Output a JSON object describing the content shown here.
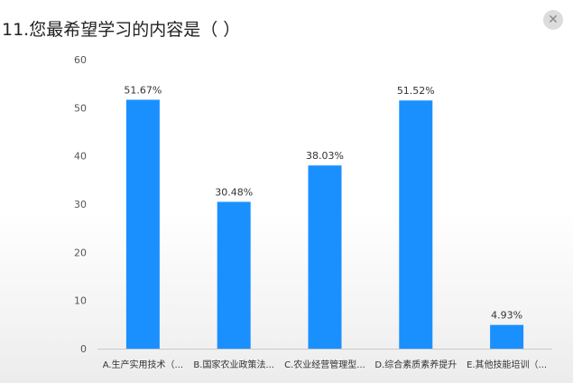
{
  "header": {
    "title": "11.您最希望学习的内容是（    ）",
    "close_icon": "close-icon"
  },
  "chart_data": {
    "type": "bar",
    "title": "11.您最希望学习的内容是（    ）",
    "categories": [
      "A.生产实用技术（...",
      "B.国家农业政策法...",
      "C.农业经营管理型...",
      "D.综合素质素养提升",
      "E.其他技能培训（..."
    ],
    "values": [
      51.67,
      30.48,
      38.03,
      51.52,
      4.93
    ],
    "data_labels": [
      "51.67%",
      "30.48%",
      "38.03%",
      "51.52%",
      "4.93%"
    ],
    "yticks": [
      "0",
      "10",
      "20",
      "30",
      "40",
      "50",
      "60"
    ],
    "ylim": [
      0,
      60
    ],
    "xlabel": "",
    "ylabel": "",
    "bar_color": "#1a90ff",
    "grid": false,
    "legend": "none"
  }
}
